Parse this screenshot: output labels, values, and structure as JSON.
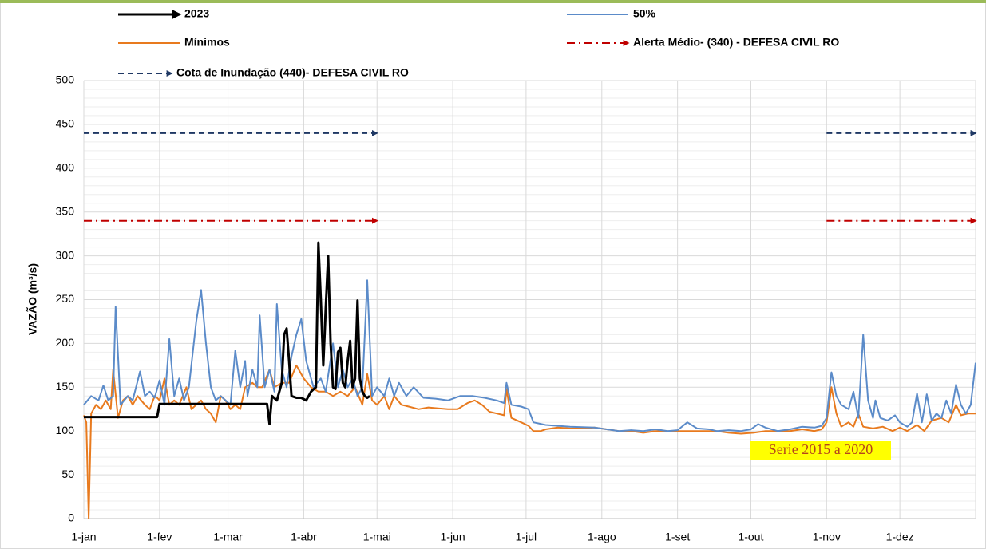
{
  "chart_data": {
    "type": "line",
    "y_label": "VAZÃO (m³/s)",
    "annotation": "Serie 2015 a 2020",
    "xlim": [
      1,
      366
    ],
    "xticks": [
      {
        "value": 1,
        "label": "1-jan"
      },
      {
        "value": 32,
        "label": "1-fev"
      },
      {
        "value": 60,
        "label": "1-mar"
      },
      {
        "value": 91,
        "label": "1-abr"
      },
      {
        "value": 121,
        "label": "1-mai"
      },
      {
        "value": 152,
        "label": "1-jun"
      },
      {
        "value": 182,
        "label": "1-jul"
      },
      {
        "value": 213,
        "label": "1-ago"
      },
      {
        "value": 244,
        "label": "1-set"
      },
      {
        "value": 274,
        "label": "1-out"
      },
      {
        "value": 305,
        "label": "1-nov"
      },
      {
        "value": 335,
        "label": "1-dez"
      }
    ],
    "ylim": [
      0,
      500
    ],
    "yticks": [
      0,
      50,
      100,
      150,
      200,
      250,
      300,
      350,
      400,
      450,
      500
    ],
    "grid": true,
    "series": [
      {
        "name": "2023",
        "color": "#000000",
        "width": 3,
        "dash": "solid",
        "arrow": true,
        "x": [
          1,
          31,
          32,
          76,
          77,
          78,
          80,
          82,
          83,
          84,
          85,
          86,
          88,
          90,
          92,
          94,
          96,
          97,
          98,
          99,
          100,
          101,
          102,
          103,
          104,
          105,
          106,
          107,
          108,
          109,
          110,
          111,
          112,
          113,
          114,
          115,
          116,
          117,
          118
        ],
        "values": [
          116,
          116,
          131,
          131,
          108,
          140,
          135,
          155,
          210,
          217,
          180,
          140,
          138,
          138,
          135,
          145,
          150,
          315,
          250,
          175,
          240,
          300,
          200,
          150,
          148,
          190,
          195,
          155,
          150,
          180,
          203,
          150,
          160,
          249,
          160,
          145,
          140,
          138,
          140
        ]
      },
      {
        "name": "50%",
        "color": "#5b8bc9",
        "width": 2,
        "dash": "solid",
        "arrow": false,
        "x": [
          1,
          4,
          7,
          9,
          11,
          13,
          14,
          16,
          19,
          21,
          24,
          26,
          28,
          30,
          32,
          34,
          36,
          38,
          40,
          42,
          44,
          47,
          49,
          51,
          53,
          55,
          57,
          59,
          61,
          63,
          65,
          67,
          68,
          70,
          72,
          73,
          75,
          77,
          79,
          80,
          82,
          84,
          86,
          88,
          90,
          92,
          95,
          98,
          100,
          103,
          105,
          107,
          109,
          111,
          113,
          115,
          117,
          119,
          121,
          124,
          126,
          128,
          130,
          133,
          136,
          140,
          145,
          150,
          155,
          160,
          165,
          170,
          173,
          174,
          176,
          180,
          183,
          185,
          190,
          200,
          210,
          215,
          220,
          225,
          230,
          235,
          240,
          244,
          248,
          252,
          257,
          260,
          265,
          270,
          274,
          277,
          280,
          285,
          290,
          295,
          300,
          303,
          305,
          307,
          309,
          311,
          314,
          316,
          318,
          320,
          322,
          324,
          325,
          327,
          330,
          333,
          335,
          338,
          340,
          342,
          344,
          346,
          348,
          350,
          352,
          354,
          356,
          358,
          360,
          362,
          364,
          366
        ],
        "values": [
          130,
          140,
          135,
          152,
          135,
          140,
          242,
          130,
          140,
          135,
          168,
          140,
          145,
          138,
          158,
          130,
          205,
          140,
          160,
          135,
          150,
          225,
          261,
          200,
          150,
          135,
          140,
          135,
          130,
          192,
          150,
          180,
          140,
          170,
          150,
          232,
          150,
          170,
          145,
          245,
          170,
          150,
          185,
          210,
          228,
          180,
          150,
          160,
          145,
          200,
          150,
          170,
          150,
          160,
          140,
          150,
          272,
          140,
          150,
          140,
          160,
          140,
          155,
          140,
          150,
          138,
          137,
          135,
          140,
          140,
          138,
          135,
          132,
          155,
          130,
          128,
          125,
          110,
          107,
          105,
          104,
          102,
          100,
          101,
          100,
          102,
          100,
          101,
          110,
          103,
          102,
          100,
          101,
          100,
          102,
          108,
          104,
          100,
          102,
          105,
          104,
          106,
          115,
          167,
          140,
          130,
          125,
          145,
          115,
          210,
          135,
          115,
          135,
          115,
          112,
          118,
          110,
          105,
          110,
          143,
          110,
          142,
          112,
          120,
          115,
          135,
          120,
          153,
          130,
          120,
          130,
          178
        ]
      },
      {
        "name": "Mínimos",
        "color": "#e87a1e",
        "width": 2,
        "dash": "solid",
        "arrow": false,
        "x": [
          1,
          2,
          3,
          4,
          6,
          8,
          10,
          12,
          13,
          15,
          17,
          19,
          21,
          23,
          26,
          28,
          30,
          31,
          32,
          34,
          36,
          38,
          40,
          43,
          45,
          47,
          49,
          51,
          53,
          55,
          57,
          59,
          61,
          63,
          65,
          67,
          70,
          72,
          74,
          77,
          79,
          82,
          85,
          88,
          91,
          94,
          97,
          100,
          103,
          106,
          109,
          112,
          115,
          117,
          119,
          121,
          124,
          126,
          128,
          131,
          134,
          138,
          142,
          146,
          150,
          154,
          158,
          161,
          164,
          167,
          170,
          173,
          174,
          176,
          180,
          183,
          185,
          188,
          190,
          195,
          200,
          205,
          210,
          215,
          220,
          225,
          230,
          235,
          240,
          245,
          250,
          255,
          260,
          265,
          270,
          275,
          280,
          285,
          290,
          295,
          300,
          303,
          305,
          307,
          309,
          311,
          314,
          316,
          318,
          320,
          324,
          328,
          332,
          335,
          338,
          342,
          345,
          348,
          352,
          355,
          358,
          360,
          363,
          366
        ],
        "values": [
          118,
          110,
          0,
          120,
          130,
          125,
          135,
          125,
          170,
          115,
          135,
          140,
          130,
          140,
          130,
          125,
          140,
          138,
          135,
          160,
          130,
          135,
          130,
          150,
          125,
          130,
          135,
          125,
          120,
          110,
          140,
          135,
          125,
          130,
          125,
          150,
          155,
          150,
          150,
          170,
          150,
          155,
          155,
          175,
          160,
          150,
          145,
          145,
          140,
          145,
          140,
          150,
          130,
          165,
          135,
          130,
          140,
          125,
          140,
          130,
          128,
          125,
          127,
          126,
          125,
          125,
          132,
          135,
          130,
          122,
          120,
          118,
          148,
          115,
          110,
          106,
          100,
          100,
          102,
          104,
          103,
          103,
          104,
          102,
          100,
          100,
          98,
          100,
          100,
          100,
          100,
          100,
          100,
          98,
          97,
          98,
          100,
          100,
          100,
          102,
          100,
          102,
          110,
          150,
          120,
          105,
          110,
          105,
          120,
          105,
          103,
          105,
          100,
          104,
          100,
          107,
          100,
          112,
          115,
          110,
          130,
          118,
          120,
          120
        ]
      },
      {
        "name": "Alerta Médio-  (340) - DEFESA CIVIL RO",
        "color": "#c00000",
        "width": 2,
        "dash": "dashdot",
        "arrow": true,
        "x": [
          1,
          121,
          213,
          305,
          366
        ],
        "values": [
          340,
          340,
          null,
          340,
          340
        ]
      },
      {
        "name": "Cota de Inundação  (440)- DEFESA CIVIL RO",
        "color": "#1f3864",
        "width": 2,
        "dash": "dashed",
        "arrow": true,
        "x": [
          1,
          121,
          213,
          305,
          366
        ],
        "values": [
          440,
          440,
          null,
          440,
          440
        ]
      }
    ]
  }
}
